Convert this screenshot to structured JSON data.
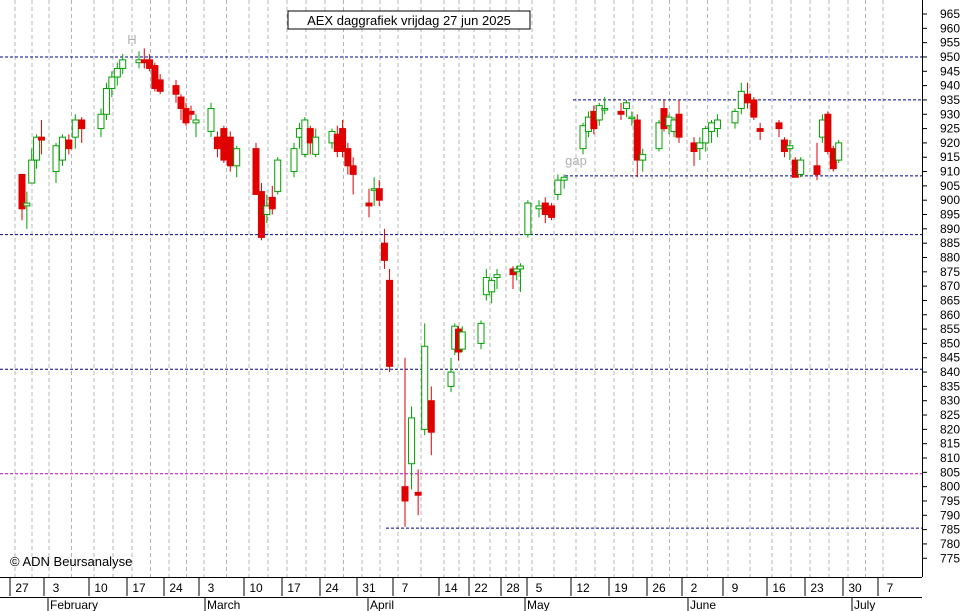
{
  "chart_data": {
    "type": "candlestick",
    "title": "AEX daggrafiek vrijdag 27 jun 2025",
    "copyright": "© ADN Beursanalyse",
    "ylim": [
      772,
      968
    ],
    "y_ticks": [
      775,
      780,
      785,
      790,
      795,
      800,
      805,
      810,
      815,
      820,
      825,
      830,
      835,
      840,
      845,
      850,
      855,
      860,
      865,
      870,
      875,
      880,
      885,
      890,
      895,
      900,
      905,
      910,
      915,
      920,
      925,
      930,
      935,
      940,
      945,
      950,
      955,
      960,
      965
    ],
    "x_ticks": [
      "27",
      "3",
      "10",
      "17",
      "24",
      "3",
      "10",
      "17",
      "24",
      "31",
      "7",
      "14",
      "22",
      "28",
      "5",
      "12",
      "19",
      "26",
      "2",
      "9",
      "16",
      "23",
      "30",
      "7"
    ],
    "months": [
      "February",
      "March",
      "April",
      "May",
      "June",
      "July"
    ],
    "annotations": [
      "H",
      "gap"
    ],
    "colors": {
      "up": "#00a000",
      "down": "#e00000",
      "grid": "#b4b4b4",
      "level": "#00008c",
      "level_alt": "#c000c0"
    },
    "horizontal_levels": [
      950,
      888,
      841,
      804.5,
      785.5,
      935,
      908.5
    ],
    "candles": [
      {
        "d": "2025-01-27",
        "o": 909,
        "h": 909,
        "l": 893,
        "c": 897
      },
      {
        "d": "2025-01-28",
        "o": 898,
        "h": 903,
        "l": 890,
        "c": 899
      },
      {
        "d": "2025-01-29",
        "o": 906,
        "h": 918,
        "l": 906,
        "c": 914
      },
      {
        "d": "2025-01-30",
        "o": 914,
        "h": 923,
        "l": 911,
        "c": 922
      },
      {
        "d": "2025-01-31",
        "o": 922,
        "h": 928,
        "l": 916,
        "c": 921
      },
      {
        "d": "2025-02-03",
        "o": 910,
        "h": 920,
        "l": 906,
        "c": 919
      },
      {
        "d": "2025-02-04",
        "o": 914,
        "h": 923,
        "l": 912,
        "c": 922
      },
      {
        "d": "2025-02-05",
        "o": 921,
        "h": 923,
        "l": 916,
        "c": 918
      },
      {
        "d": "2025-02-06",
        "o": 922,
        "h": 930,
        "l": 918,
        "c": 928
      },
      {
        "d": "2025-02-07",
        "o": 928,
        "h": 929,
        "l": 920,
        "c": 925
      },
      {
        "d": "2025-02-10",
        "o": 925,
        "h": 932,
        "l": 922,
        "c": 930
      },
      {
        "d": "2025-02-11",
        "o": 930,
        "h": 941,
        "l": 928,
        "c": 939
      },
      {
        "d": "2025-02-12",
        "o": 939,
        "h": 945,
        "l": 936,
        "c": 943
      },
      {
        "d": "2025-02-13",
        "o": 943,
        "h": 948,
        "l": 940,
        "c": 946
      },
      {
        "d": "2025-02-14",
        "o": 946,
        "h": 951,
        "l": 944,
        "c": 949
      },
      {
        "d": "2025-02-17",
        "o": 948,
        "h": 952,
        "l": 946,
        "c": 949
      },
      {
        "d": "2025-02-18",
        "o": 949,
        "h": 953,
        "l": 946,
        "c": 948
      },
      {
        "d": "2025-02-19",
        "o": 949,
        "h": 951,
        "l": 945,
        "c": 946
      },
      {
        "d": "2025-02-20",
        "o": 947,
        "h": 948,
        "l": 938,
        "c": 939
      },
      {
        "d": "2025-02-21",
        "o": 942,
        "h": 944,
        "l": 937,
        "c": 938
      },
      {
        "d": "2025-02-24",
        "o": 940,
        "h": 942,
        "l": 934,
        "c": 937
      },
      {
        "d": "2025-02-25",
        "o": 936,
        "h": 937,
        "l": 928,
        "c": 932
      },
      {
        "d": "2025-02-26",
        "o": 932,
        "h": 934,
        "l": 926,
        "c": 927
      },
      {
        "d": "2025-02-27",
        "o": 931,
        "h": 933,
        "l": 928,
        "c": 930
      },
      {
        "d": "2025-02-28",
        "o": 927,
        "h": 930,
        "l": 922,
        "c": 928
      },
      {
        "d": "2025-03-03",
        "o": 924,
        "h": 934,
        "l": 922,
        "c": 932
      },
      {
        "d": "2025-03-04",
        "o": 922,
        "h": 924,
        "l": 915,
        "c": 918
      },
      {
        "d": "2025-03-05",
        "o": 925,
        "h": 926,
        "l": 913,
        "c": 914
      },
      {
        "d": "2025-03-06",
        "o": 922,
        "h": 924,
        "l": 910,
        "c": 912
      },
      {
        "d": "2025-03-07",
        "o": 912,
        "h": 919,
        "l": 908,
        "c": 918
      },
      {
        "d": "2025-03-10",
        "o": 918,
        "h": 920,
        "l": 902,
        "c": 902
      },
      {
        "d": "2025-03-11",
        "o": 903,
        "h": 906,
        "l": 886,
        "c": 887
      },
      {
        "d": "2025-03-12",
        "o": 895,
        "h": 902,
        "l": 892,
        "c": 898
      },
      {
        "d": "2025-03-13",
        "o": 901,
        "h": 905,
        "l": 895,
        "c": 897
      },
      {
        "d": "2025-03-14",
        "o": 903,
        "h": 915,
        "l": 902,
        "c": 914
      },
      {
        "d": "2025-03-17",
        "o": 910,
        "h": 920,
        "l": 908,
        "c": 918
      },
      {
        "d": "2025-03-18",
        "o": 922,
        "h": 927,
        "l": 918,
        "c": 925
      },
      {
        "d": "2025-03-19",
        "o": 916,
        "h": 929,
        "l": 915,
        "c": 928
      },
      {
        "d": "2025-03-20",
        "o": 925,
        "h": 926,
        "l": 916,
        "c": 920
      },
      {
        "d": "2025-03-21",
        "o": 916,
        "h": 925,
        "l": 915,
        "c": 922
      },
      {
        "d": "2025-03-24",
        "o": 920,
        "h": 925,
        "l": 918,
        "c": 924
      },
      {
        "d": "2025-03-25",
        "o": 923,
        "h": 926,
        "l": 915,
        "c": 917
      },
      {
        "d": "2025-03-26",
        "o": 925,
        "h": 928,
        "l": 915,
        "c": 917
      },
      {
        "d": "2025-03-27",
        "o": 918,
        "h": 920,
        "l": 909,
        "c": 912
      },
      {
        "d": "2025-03-28",
        "o": 912,
        "h": 915,
        "l": 902,
        "c": 909
      },
      {
        "d": "2025-03-31",
        "o": 899,
        "h": 904,
        "l": 894,
        "c": 898
      },
      {
        "d": "2025-04-01",
        "o": 904,
        "h": 908,
        "l": 898,
        "c": 904
      },
      {
        "d": "2025-04-02",
        "o": 904,
        "h": 907,
        "l": 898,
        "c": 900
      },
      {
        "d": "2025-04-03",
        "o": 885,
        "h": 890,
        "l": 876,
        "c": 879
      },
      {
        "d": "2025-04-04",
        "o": 872,
        "h": 876,
        "l": 840,
        "c": 842
      },
      {
        "d": "2025-04-07",
        "o": 800,
        "h": 845,
        "l": 786,
        "c": 795
      },
      {
        "d": "2025-04-08",
        "o": 808,
        "h": 828,
        "l": 799,
        "c": 824
      },
      {
        "d": "2025-04-09",
        "o": 798,
        "h": 806,
        "l": 790,
        "c": 797
      },
      {
        "d": "2025-04-10",
        "o": 820,
        "h": 857,
        "l": 818,
        "c": 849
      },
      {
        "d": "2025-04-11",
        "o": 830,
        "h": 835,
        "l": 811,
        "c": 819
      },
      {
        "d": "2025-04-14",
        "o": 835,
        "h": 845,
        "l": 833,
        "c": 840
      },
      {
        "d": "2025-04-15",
        "o": 848,
        "h": 857,
        "l": 846,
        "c": 856
      },
      {
        "d": "2025-04-16",
        "o": 855,
        "h": 856,
        "l": 844,
        "c": 847
      },
      {
        "d": "2025-04-17",
        "o": 848,
        "h": 856,
        "l": 847,
        "c": 854
      },
      {
        "d": "2025-04-22",
        "o": 850,
        "h": 858,
        "l": 848,
        "c": 857
      },
      {
        "d": "2025-04-23",
        "o": 867,
        "h": 876,
        "l": 865,
        "c": 873
      },
      {
        "d": "2025-04-24",
        "o": 868,
        "h": 873,
        "l": 864,
        "c": 872
      },
      {
        "d": "2025-04-25",
        "o": 873,
        "h": 876,
        "l": 869,
        "c": 874
      },
      {
        "d": "2025-04-28",
        "o": 876,
        "h": 877,
        "l": 869,
        "c": 874
      },
      {
        "d": "2025-04-29",
        "o": 875,
        "h": 877,
        "l": 872,
        "c": 876
      },
      {
        "d": "2025-04-30",
        "o": 876,
        "h": 878,
        "l": 868,
        "c": 877
      },
      {
        "d": "2025-05-02",
        "o": 888,
        "h": 900,
        "l": 887,
        "c": 899
      },
      {
        "d": "2025-05-05",
        "o": 897,
        "h": 900,
        "l": 894,
        "c": 898
      },
      {
        "d": "2025-05-06",
        "o": 899,
        "h": 901,
        "l": 892,
        "c": 895
      },
      {
        "d": "2025-05-07",
        "o": 898,
        "h": 899,
        "l": 893,
        "c": 894
      },
      {
        "d": "2025-05-08",
        "o": 902,
        "h": 909,
        "l": 900,
        "c": 907
      },
      {
        "d": "2025-05-09",
        "o": 907,
        "h": 909,
        "l": 904,
        "c": 908
      },
      {
        "d": "2025-05-12",
        "o": 918,
        "h": 927,
        "l": 916,
        "c": 926
      },
      {
        "d": "2025-05-13",
        "o": 924,
        "h": 931,
        "l": 922,
        "c": 929
      },
      {
        "d": "2025-05-14",
        "o": 931,
        "h": 933,
        "l": 923,
        "c": 925
      },
      {
        "d": "2025-05-15",
        "o": 928,
        "h": 934,
        "l": 926,
        "c": 933
      },
      {
        "d": "2025-05-16",
        "o": 932,
        "h": 936,
        "l": 930,
        "c": 932
      },
      {
        "d": "2025-05-19",
        "o": 931,
        "h": 934,
        "l": 928,
        "c": 930
      },
      {
        "d": "2025-05-20",
        "o": 932,
        "h": 935,
        "l": 929,
        "c": 934
      },
      {
        "d": "2025-05-21",
        "o": 929,
        "h": 931,
        "l": 926,
        "c": 929
      },
      {
        "d": "2025-05-22",
        "o": 928,
        "h": 930,
        "l": 908,
        "c": 914
      },
      {
        "d": "2025-05-23",
        "o": 914,
        "h": 918,
        "l": 910,
        "c": 916
      },
      {
        "d": "2025-05-26",
        "o": 918,
        "h": 928,
        "l": 917,
        "c": 927
      },
      {
        "d": "2025-05-27",
        "o": 932,
        "h": 935,
        "l": 924,
        "c": 925
      },
      {
        "d": "2025-05-28",
        "o": 926,
        "h": 930,
        "l": 923,
        "c": 929
      },
      {
        "d": "2025-05-29",
        "o": 924,
        "h": 929,
        "l": 922,
        "c": 928
      },
      {
        "d": "2025-05-30",
        "o": 930,
        "h": 935,
        "l": 920,
        "c": 922
      },
      {
        "d": "2025-06-02",
        "o": 920,
        "h": 922,
        "l": 912,
        "c": 917
      },
      {
        "d": "2025-06-03",
        "o": 918,
        "h": 922,
        "l": 914,
        "c": 920
      },
      {
        "d": "2025-06-04",
        "o": 920,
        "h": 926,
        "l": 917,
        "c": 925
      },
      {
        "d": "2025-06-05",
        "o": 924,
        "h": 928,
        "l": 920,
        "c": 927
      },
      {
        "d": "2025-06-06",
        "o": 925,
        "h": 930,
        "l": 922,
        "c": 928
      },
      {
        "d": "2025-06-09",
        "o": 927,
        "h": 932,
        "l": 925,
        "c": 931
      },
      {
        "d": "2025-06-10",
        "o": 932,
        "h": 941,
        "l": 930,
        "c": 938
      },
      {
        "d": "2025-06-11",
        "o": 937,
        "h": 941,
        "l": 932,
        "c": 934
      },
      {
        "d": "2025-06-12",
        "o": 935,
        "h": 936,
        "l": 928,
        "c": 929
      },
      {
        "d": "2025-06-13",
        "o": 925,
        "h": 927,
        "l": 921,
        "c": 924
      },
      {
        "d": "2025-06-16",
        "o": 927,
        "h": 928,
        "l": 922,
        "c": 925
      },
      {
        "d": "2025-06-17",
        "o": 921,
        "h": 922,
        "l": 915,
        "c": 917
      },
      {
        "d": "2025-06-18",
        "o": 918,
        "h": 921,
        "l": 914,
        "c": 919
      },
      {
        "d": "2025-06-19",
        "o": 914,
        "h": 915,
        "l": 908,
        "c": 908
      },
      {
        "d": "2025-06-20",
        "o": 909,
        "h": 915,
        "l": 908,
        "c": 914
      },
      {
        "d": "2025-06-23",
        "o": 912,
        "h": 920,
        "l": 907,
        "c": 909
      },
      {
        "d": "2025-06-24",
        "o": 922,
        "h": 930,
        "l": 920,
        "c": 928
      },
      {
        "d": "2025-06-25",
        "o": 930,
        "h": 931,
        "l": 916,
        "c": 917
      },
      {
        "d": "2025-06-26",
        "o": 918,
        "h": 919,
        "l": 910,
        "c": 911
      },
      {
        "d": "2025-06-27",
        "o": 914,
        "h": 921,
        "l": 913,
        "c": 920
      }
    ]
  }
}
